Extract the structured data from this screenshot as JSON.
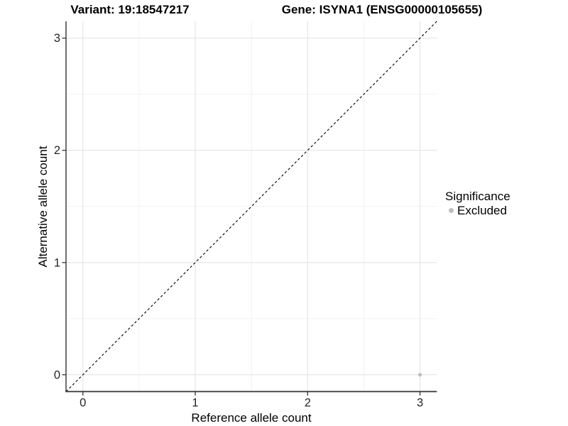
{
  "chart_data": {
    "type": "scatter",
    "title_left": "Variant: 19:18547217",
    "title_right": "Gene: ISYNA1 (ENSG00000105655)",
    "xlabel": "Reference allele count",
    "ylabel": "Alternative allele count",
    "xlim": [
      -0.15,
      3.15
    ],
    "ylim": [
      -0.15,
      3.15
    ],
    "x_ticks": [
      0,
      1,
      2,
      3
    ],
    "y_ticks": [
      0,
      1,
      2,
      3
    ],
    "x_minor_ticks": [
      0.5,
      1.5,
      2.5
    ],
    "y_minor_ticks": [
      0.5,
      1.5,
      2.5
    ],
    "grid": "major and minor, light gray, no top/right border",
    "reference_line": {
      "style": "dashed",
      "x1": -0.15,
      "y1": -0.15,
      "x2": 3.15,
      "y2": 3.15,
      "color": "#000000",
      "meaning": "identity line y = x"
    },
    "series": [
      {
        "name": "Excluded",
        "color": "#bebebe",
        "points": [
          {
            "x": 3,
            "y": 0
          }
        ]
      }
    ],
    "legend": {
      "title": "Significance",
      "position": "right",
      "items": [
        {
          "label": "Excluded",
          "color": "#bebebe"
        }
      ]
    }
  },
  "style": {
    "grid_major_color": "#e4e4e4",
    "grid_minor_color": "#f1f1f1",
    "axis_line_color": "#333333",
    "tick_label_color": "#262626",
    "point_radius": 2.6,
    "legend_dot_radius": 3.5
  }
}
